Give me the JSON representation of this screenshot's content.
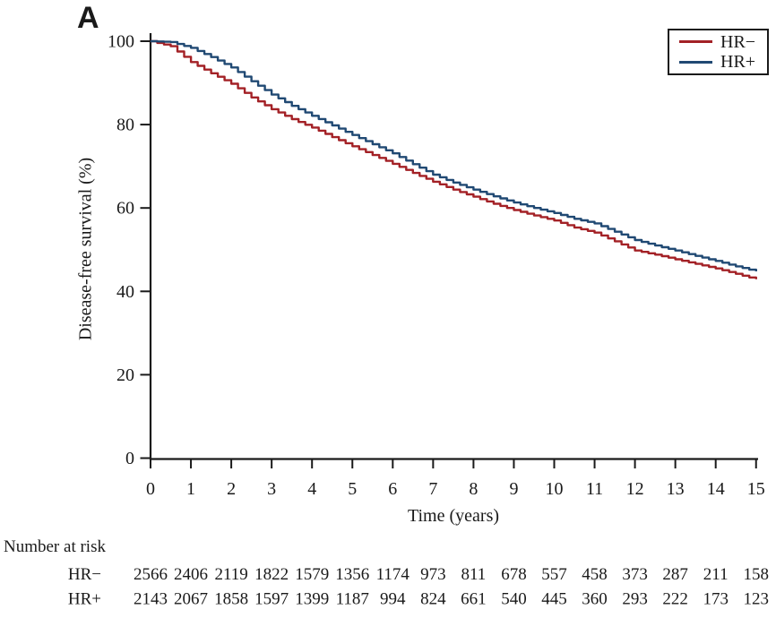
{
  "panel_label": "A",
  "colors": {
    "axis": "#1a1a1a",
    "hr_neg": "#a32126",
    "hr_pos": "#204973"
  },
  "chart_data": {
    "type": "line",
    "subtype": "kaplan-meier-step",
    "title": "",
    "xlabel": "Time (years)",
    "ylabel": "Disease-free survival (%)",
    "xlim": [
      0,
      15
    ],
    "ylim": [
      0,
      100
    ],
    "grid": false,
    "legend_position": "top-right",
    "x_ticks": [
      0,
      1,
      2,
      3,
      4,
      5,
      6,
      7,
      8,
      9,
      10,
      11,
      12,
      13,
      14,
      15
    ],
    "y_ticks": [
      0,
      20,
      40,
      60,
      80,
      100
    ],
    "x": [
      0,
      0.5,
      1,
      1.5,
      2,
      2.5,
      3,
      3.5,
      4,
      4.5,
      5,
      5.5,
      6,
      6.5,
      7,
      7.5,
      8,
      8.5,
      9,
      9.5,
      10,
      10.5,
      11,
      11.5,
      12,
      12.5,
      13,
      13.5,
      14,
      14.5,
      15
    ],
    "series": [
      {
        "id": "hr-neg",
        "name": "HR−",
        "color": "#a32126",
        "values": [
          100,
          98.8,
          95.0,
          92.3,
          89.8,
          86.5,
          83.7,
          81.3,
          79.3,
          77.0,
          74.8,
          72.7,
          70.6,
          68.4,
          66.3,
          64.4,
          62.7,
          61.0,
          59.5,
          58.2,
          57.0,
          55.3,
          54.1,
          52.0,
          49.8,
          48.8,
          47.7,
          46.6,
          45.5,
          44.2,
          42.9
        ]
      },
      {
        "id": "hr-pos",
        "name": "HR+",
        "color": "#204973",
        "values": [
          100,
          99.8,
          98.4,
          96.2,
          93.7,
          90.4,
          87.2,
          84.5,
          82.1,
          79.8,
          77.5,
          75.3,
          73.1,
          70.5,
          68.0,
          66.1,
          64.4,
          62.8,
          61.3,
          60.0,
          58.8,
          57.4,
          56.3,
          54.3,
          52.3,
          51.0,
          49.8,
          48.5,
          47.3,
          46.0,
          44.8
        ]
      }
    ]
  },
  "risk_table": {
    "heading": "Number at risk",
    "rows": [
      {
        "label": "HR−",
        "counts": [
          2566,
          2406,
          2119,
          1822,
          1579,
          1356,
          1174,
          973,
          811,
          678,
          557,
          458,
          373,
          287,
          211,
          158
        ]
      },
      {
        "label": "HR+",
        "counts": [
          2143,
          2067,
          1858,
          1597,
          1399,
          1187,
          994,
          824,
          661,
          540,
          445,
          360,
          293,
          222,
          173,
          123
        ]
      }
    ]
  }
}
